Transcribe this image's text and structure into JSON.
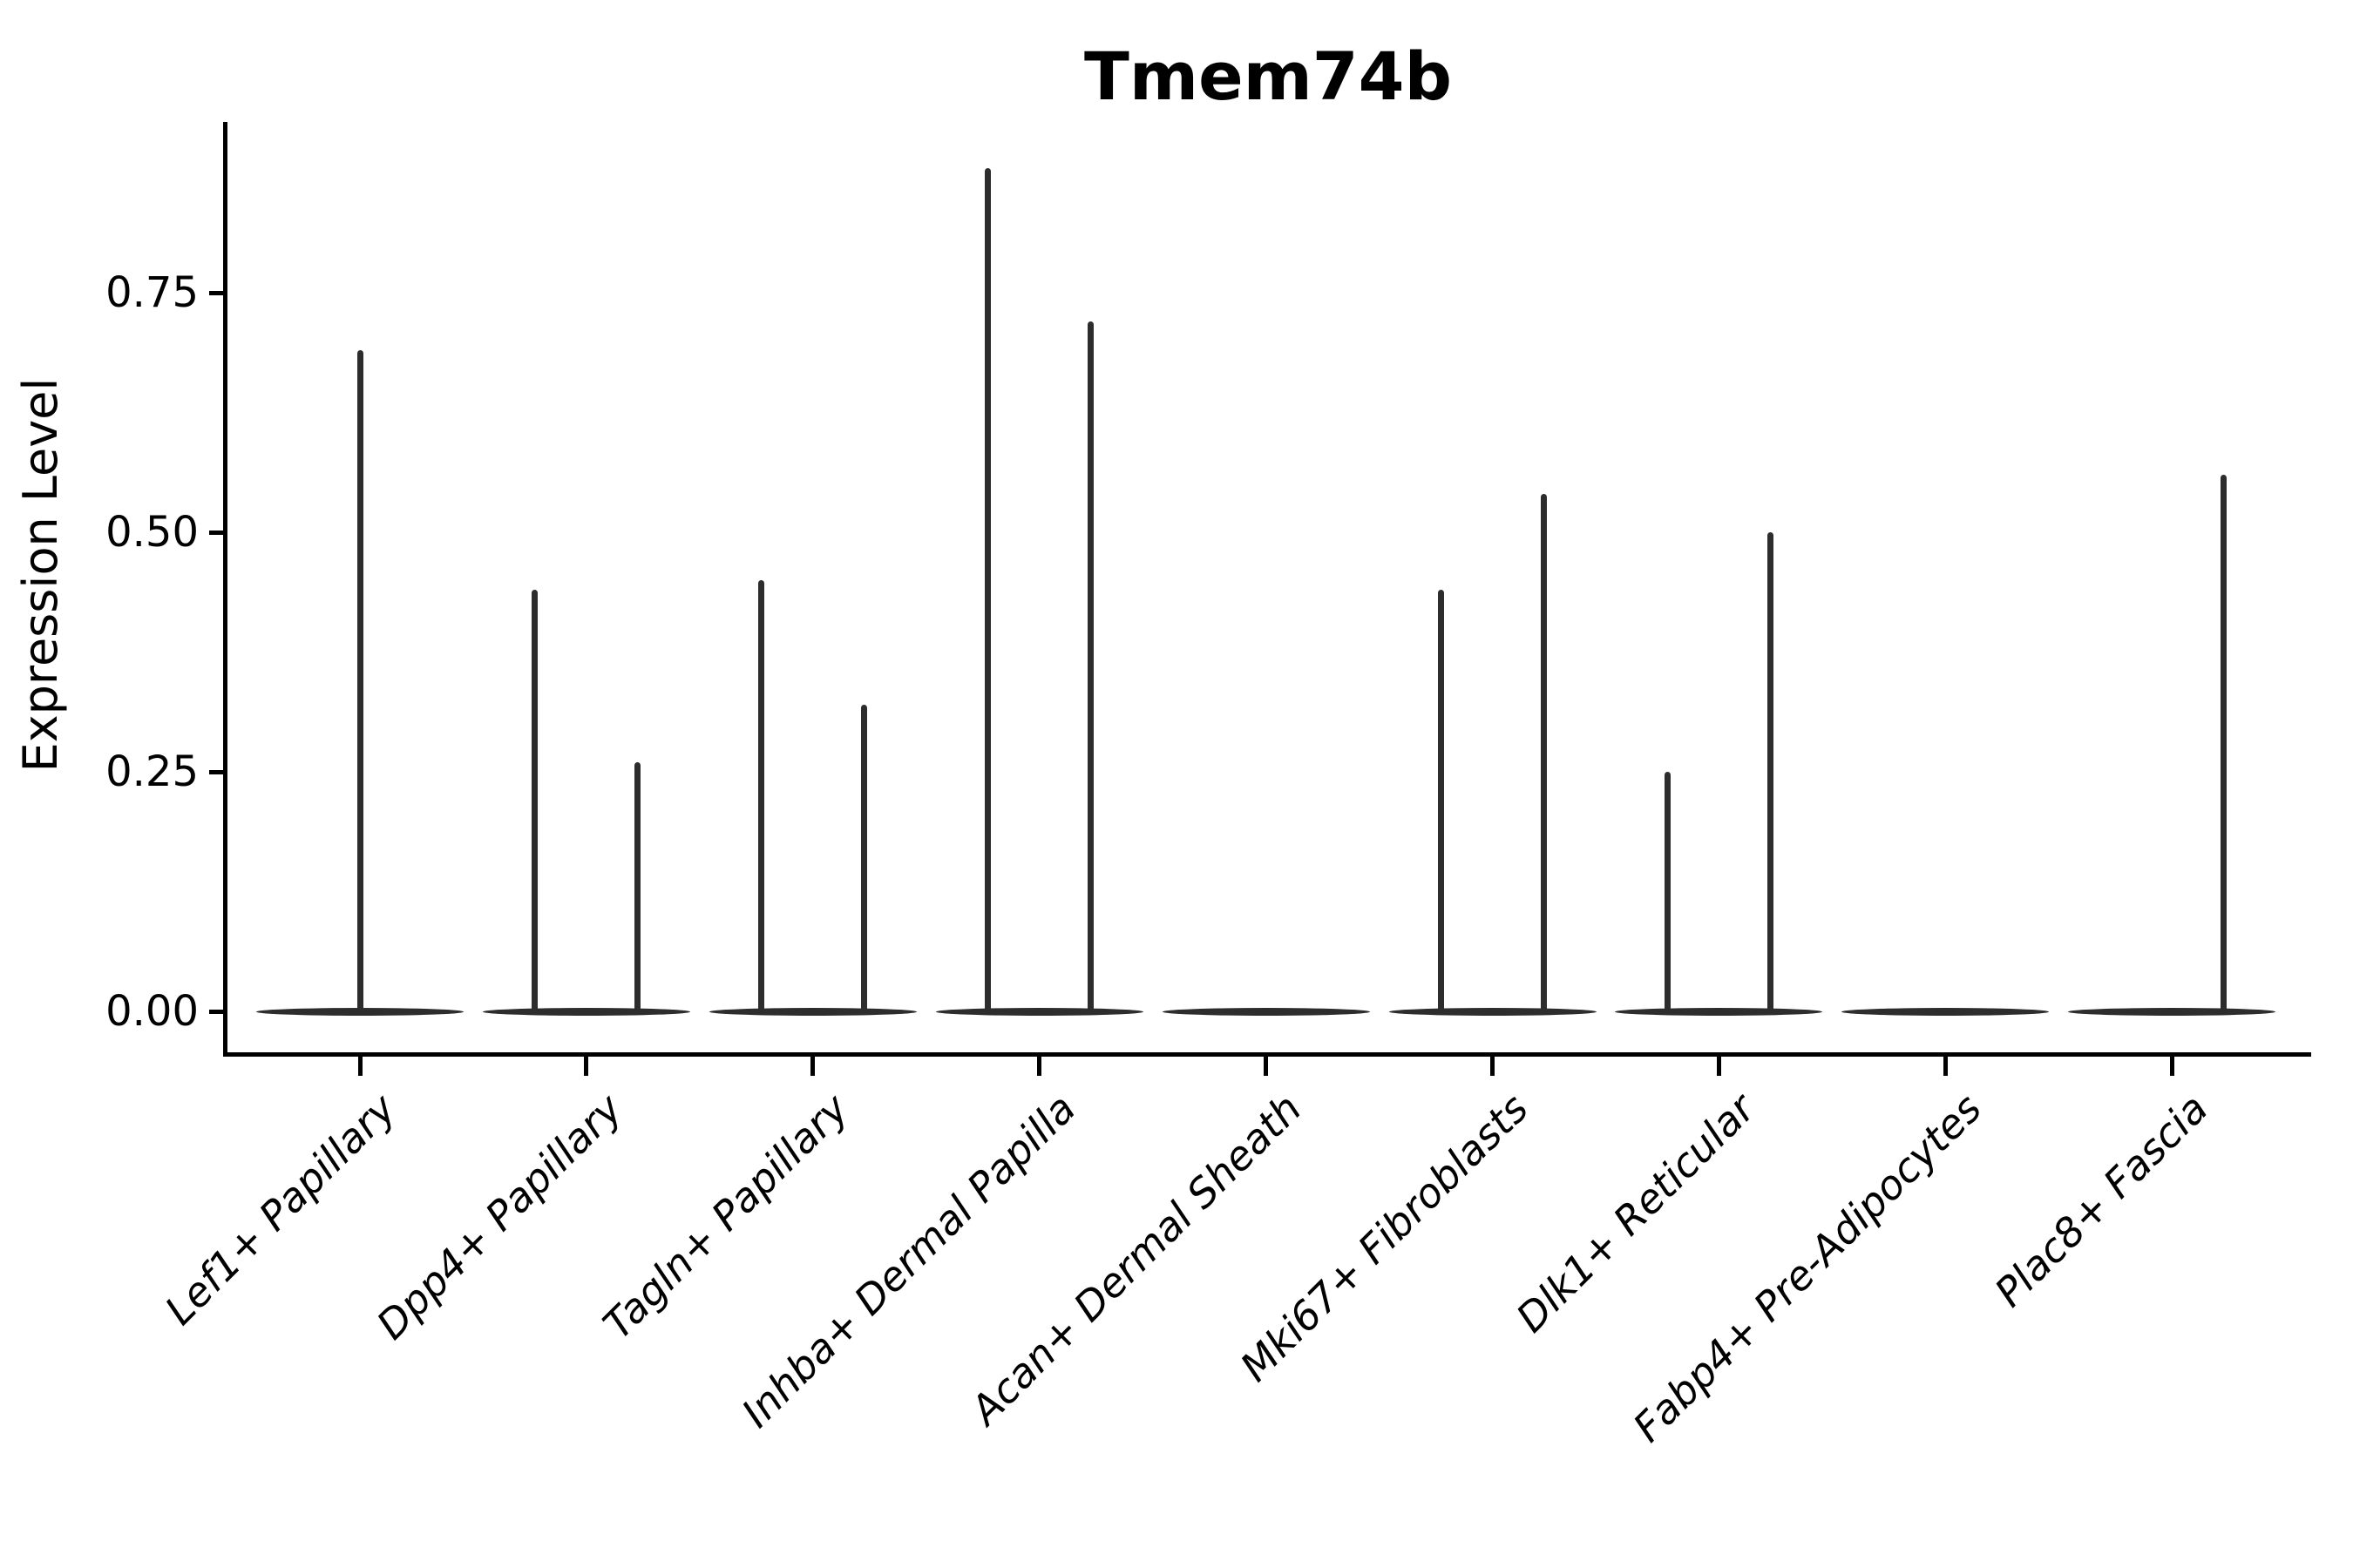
{
  "chart_data": {
    "type": "violin",
    "title": "Tmem74b",
    "ylabel": "Expression Level",
    "xlabel": "",
    "grid": false,
    "legend": "none",
    "ylim": [
      0,
      0.93
    ],
    "yticks": [
      {
        "label": "0.00",
        "value": 0.0
      },
      {
        "label": "0.25",
        "value": 0.25
      },
      {
        "label": "0.50",
        "value": 0.5
      },
      {
        "label": "0.75",
        "value": 0.75
      }
    ],
    "categories": [
      "Lef1+ Papillary",
      "Dpp4+ Papillary",
      "Tagln+ Papillary",
      "Inhba+ Dermal Papilla",
      "Acan+ Dermal Sheath",
      "Mki67+ Fibroblasts",
      "Dlk1+ Reticular",
      "Fabp4+ Pre-Adipocytes",
      "Plac8+ Fascia"
    ],
    "violins": [
      {
        "category": "Lef1+ Papillary",
        "bulk_at": 0,
        "spikes": [
          {
            "pos": "center",
            "max": 0.69
          }
        ]
      },
      {
        "category": "Dpp4+ Papillary",
        "bulk_at": 0,
        "spikes": [
          {
            "pos": "left",
            "max": 0.44
          },
          {
            "pos": "right",
            "max": 0.26
          }
        ]
      },
      {
        "category": "Tagln+ Papillary",
        "bulk_at": 0,
        "spikes": [
          {
            "pos": "left",
            "max": 0.45
          },
          {
            "pos": "right",
            "max": 0.32
          }
        ]
      },
      {
        "category": "Inhba+ Dermal Papilla",
        "bulk_at": 0,
        "spikes": [
          {
            "pos": "left",
            "max": 0.88
          },
          {
            "pos": "right",
            "max": 0.72
          }
        ]
      },
      {
        "category": "Acan+ Dermal Sheath",
        "bulk_at": 0,
        "spikes": []
      },
      {
        "category": "Mki67+ Fibroblasts",
        "bulk_at": 0,
        "spikes": [
          {
            "pos": "left",
            "max": 0.44
          },
          {
            "pos": "right",
            "max": 0.54
          }
        ]
      },
      {
        "category": "Dlk1+ Reticular",
        "bulk_at": 0,
        "spikes": [
          {
            "pos": "left",
            "max": 0.25
          },
          {
            "pos": "right",
            "max": 0.5
          }
        ]
      },
      {
        "category": "Fabp4+ Pre-Adipocytes",
        "bulk_at": 0,
        "spikes": []
      },
      {
        "category": "Plac8+ Fascia",
        "bulk_at": 0,
        "spikes": [
          {
            "pos": "right",
            "max": 0.56
          }
        ]
      }
    ]
  },
  "colors": {
    "background": "#ffffff",
    "axis": "#000000",
    "text": "#000000",
    "violin_ink": "#2d2d2d"
  }
}
